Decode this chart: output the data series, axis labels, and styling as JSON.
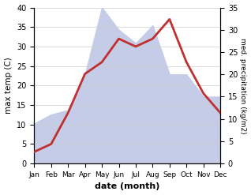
{
  "months": [
    "Jan",
    "Feb",
    "Mar",
    "Apr",
    "May",
    "Jun",
    "Jul",
    "Aug",
    "Sep",
    "Oct",
    "Nov",
    "Dec"
  ],
  "temperature": [
    3,
    5,
    13,
    23,
    26,
    32,
    30,
    32,
    37,
    26,
    18,
    13
  ],
  "precipitation": [
    9,
    11,
    12,
    20,
    35,
    30,
    27,
    31,
    20,
    20,
    15,
    15
  ],
  "temp_color": "#c03030",
  "precip_fill_color": "#c5cce8",
  "xlabel": "date (month)",
  "ylabel_left": "max temp (C)",
  "ylabel_right": "med. precipitation (kg/m2)",
  "ylim_left": [
    0,
    40
  ],
  "ylim_right": [
    0,
    35
  ],
  "background_color": "#ffffff",
  "grid_color": "#cccccc"
}
